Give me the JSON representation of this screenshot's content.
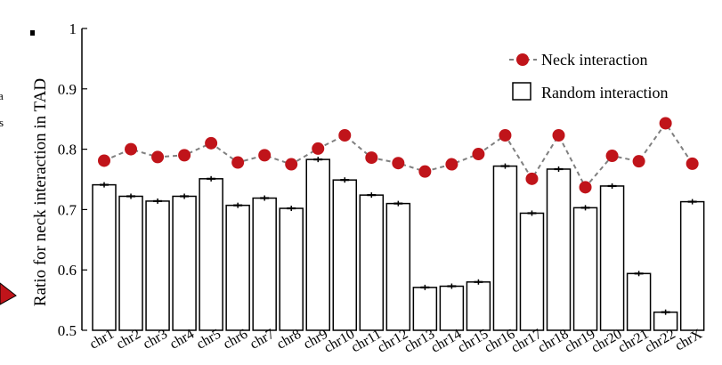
{
  "chart_data": {
    "type": "bar",
    "ylabel": "Ratio for neck interaction in TAD",
    "ylim": [
      0.5,
      1.0
    ],
    "yticks": [
      0.5,
      0.6,
      0.7,
      0.8,
      0.9,
      1.0
    ],
    "ytick_labels": [
      "0.5",
      "0.6",
      "0.7",
      "0.8",
      "0.9",
      "1"
    ],
    "categories": [
      "chr1",
      "chr2",
      "chr3",
      "chr4",
      "chr5",
      "chr6",
      "chr7",
      "chr8",
      "chr9",
      "chr10",
      "chr11",
      "chr12",
      "chr13",
      "chr14",
      "chr15",
      "chr16",
      "chr17",
      "chr18",
      "chr19",
      "chr20",
      "chr21",
      "chr22",
      "chrX"
    ],
    "series": [
      {
        "name": "Neck interaction",
        "kind": "line-markers",
        "color": "#c0141a",
        "line_color": "#808080",
        "values": [
          0.781,
          0.8,
          0.787,
          0.79,
          0.81,
          0.778,
          0.79,
          0.775,
          0.801,
          0.823,
          0.786,
          0.777,
          0.763,
          0.775,
          0.792,
          0.823,
          0.751,
          0.823,
          0.737,
          0.789,
          0.78,
          0.843,
          0.776
        ]
      },
      {
        "name": "Random interaction",
        "kind": "bar",
        "color": "#ffffff",
        "values": [
          0.741,
          0.722,
          0.714,
          0.722,
          0.751,
          0.707,
          0.719,
          0.702,
          0.783,
          0.749,
          0.724,
          0.71,
          0.571,
          0.573,
          0.58,
          0.772,
          0.694,
          0.767,
          0.703,
          0.739,
          0.594,
          0.53,
          0.713
        ]
      }
    ],
    "legend_position": "top-right",
    "grid": false
  },
  "fragments": {
    "left_text_1": "s",
    "left_text_2": "a"
  }
}
